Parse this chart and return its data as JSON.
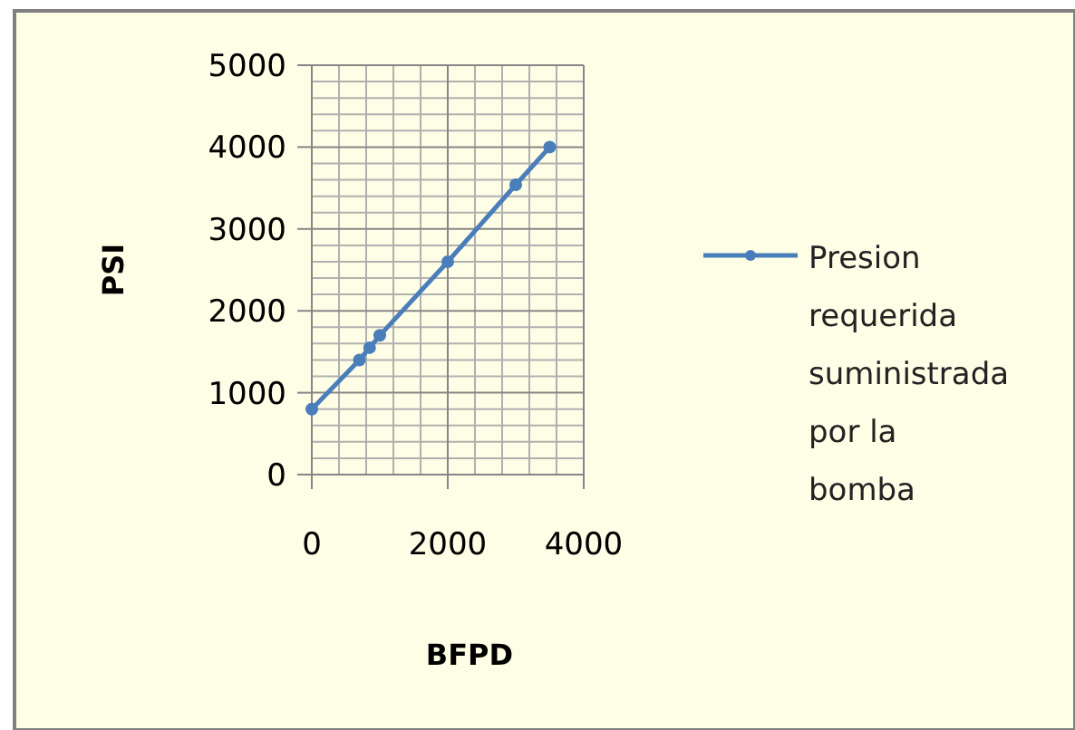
{
  "chart_data": {
    "type": "line",
    "xlabel": "BFPD",
    "ylabel": "PSI",
    "series": [
      {
        "name": "Presion requerida suministrada por la bomba",
        "color": "#4a7ebb",
        "x": [
          0,
          700,
          850,
          1000,
          2000,
          3000,
          3500
        ],
        "values": [
          800,
          1400,
          1550,
          1700,
          2600,
          3540,
          4000
        ]
      }
    ],
    "xlim": [
      0,
      4000
    ],
    "xticks": [
      0,
      2000,
      4000
    ],
    "ylim": [
      0,
      5000
    ],
    "yticks": [
      0,
      1000,
      2000,
      3000,
      4000,
      5000
    ],
    "grid": true,
    "legend": "right",
    "marker": "circle",
    "line_style": "solid"
  }
}
